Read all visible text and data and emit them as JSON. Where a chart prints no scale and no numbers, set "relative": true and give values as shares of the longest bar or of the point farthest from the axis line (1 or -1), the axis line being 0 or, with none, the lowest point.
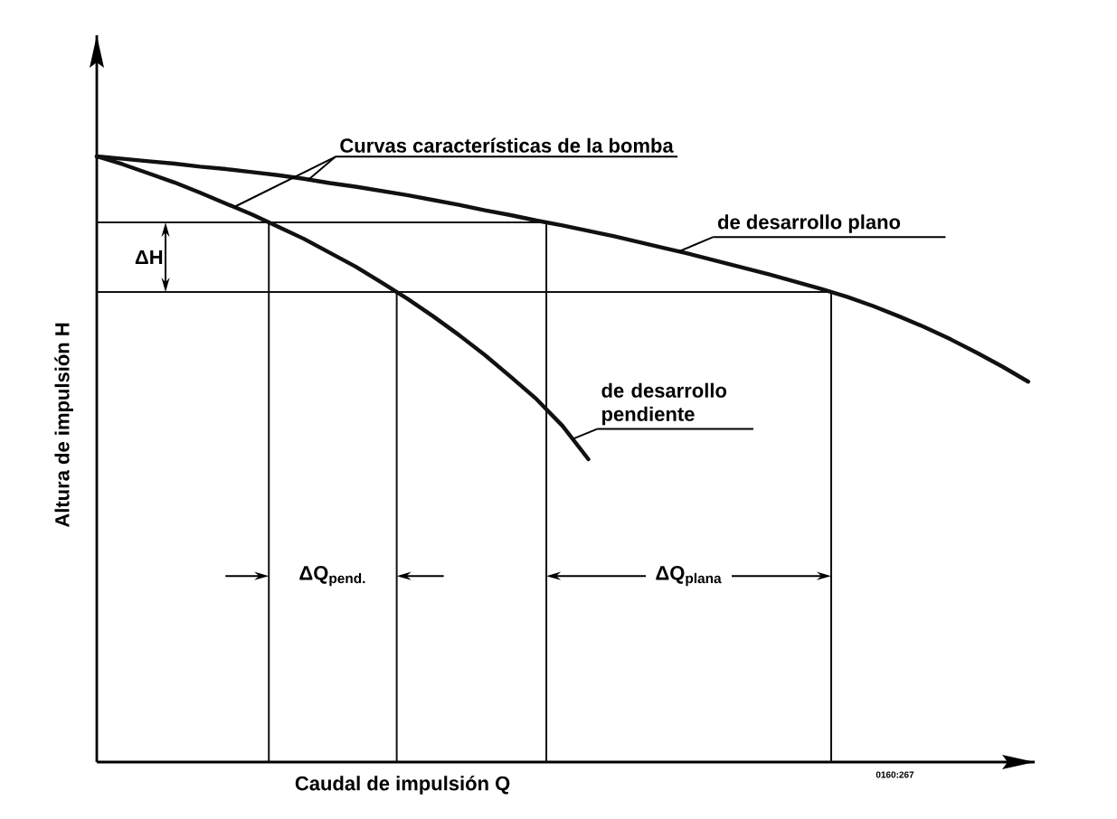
{
  "chart_data": {
    "type": "line",
    "relative": true,
    "xlabel": "Caudal de impulsión Q",
    "ylabel": "Altura de impulsión H",
    "categories": [
      null,
      null,
      null,
      null,
      null,
      null,
      null,
      null,
      null,
      null,
      null,
      null,
      null,
      null,
      null,
      null,
      null,
      null,
      null,
      null,
      null,
      null,
      null,
      null,
      null,
      null,
      null,
      null,
      null,
      null,
      null,
      null,
      null,
      null,
      null,
      null,
      null
    ],
    "series": [
      {
        "name": "de desarrollo plano",
        "color": "#111111",
        "values": [
          1,
          0.996,
          0.992,
          0.988,
          0.983,
          0.979,
          0.974,
          0.969,
          0.963,
          0.956,
          0.95,
          0.943,
          0.936,
          0.928,
          0.92,
          0.911,
          0.903,
          0.894,
          0.886,
          0.877,
          0.868,
          0.858,
          0.848,
          0.838,
          0.827,
          0.816,
          0.805,
          0.793,
          0.781,
          0.768,
          0.753,
          0.736,
          0.718,
          0.698,
          0.676,
          0.653,
          0.628
        ]
      },
      {
        "name": "de desarrollo pendiente",
        "color": "#111111",
        "values": [
          1,
          0.987,
          0.972,
          0.957,
          0.94,
          0.922,
          0.904,
          0.884,
          0.864,
          0.841,
          0.818,
          0.792,
          0.765,
          0.736,
          0.705,
          0.672,
          0.636,
          0.599,
          0.555,
          0.5,
          null,
          null,
          null,
          null,
          null,
          null,
          null,
          null,
          null,
          null,
          null,
          null,
          null,
          null,
          null,
          null,
          null
        ]
      }
    ],
    "ref_lines": [
      {
        "axis": "y",
        "value": 0.891
      },
      {
        "axis": "y",
        "value": 0.776
      }
    ],
    "annotations": [
      "Curvas características de la bomba",
      "ΔH",
      "ΔQ$_{pend.}$",
      "ΔQ$_{plana}$",
      "0160:267"
    ]
  }
}
